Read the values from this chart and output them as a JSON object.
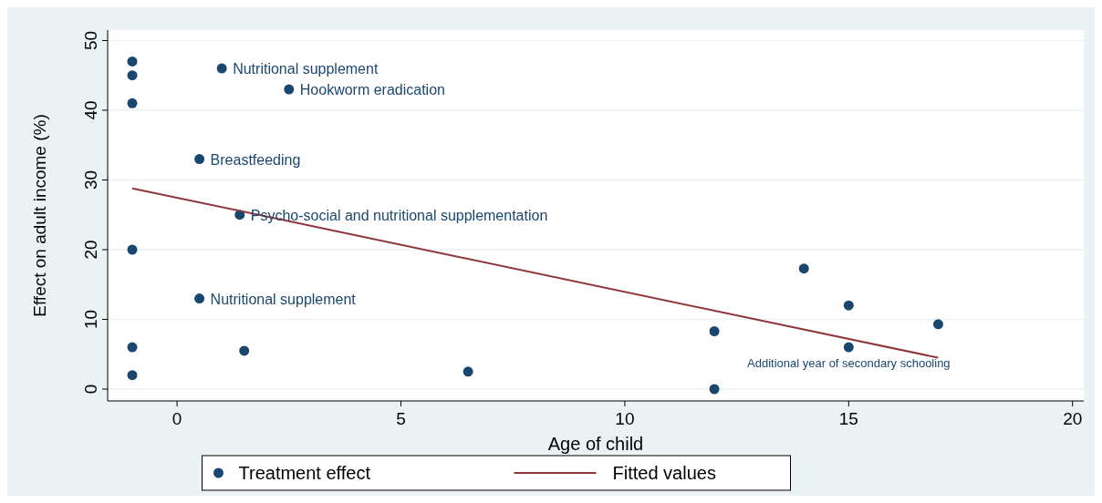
{
  "chart_data": {
    "type": "scatter",
    "xlabel": "Age of child",
    "ylabel": "Effect on adult income (%)",
    "xlim": [
      -1.55,
      20.25
    ],
    "ylim": [
      -1.7,
      51.5
    ],
    "xticks": [
      0,
      5,
      10,
      15,
      20
    ],
    "yticks": [
      0,
      10,
      20,
      30,
      40,
      50
    ],
    "grid": "y",
    "legend": "bottom",
    "marker": "circle",
    "series": [
      {
        "name": "Treatment effect",
        "color": "#1a476f",
        "x": [
          -1,
          -1,
          -1,
          1,
          2.5,
          0.5,
          1.4,
          -1,
          0.5,
          -1,
          -1,
          1.5,
          6.5,
          12,
          12,
          14,
          15,
          15,
          17
        ],
        "values": [
          47,
          45,
          41,
          46,
          43,
          33,
          25,
          20,
          13,
          6,
          2,
          5.5,
          2.5,
          8.3,
          0,
          17.3,
          12,
          6,
          9.3
        ]
      },
      {
        "name": "Fitted values",
        "type": "line",
        "color": "#90353b",
        "marker": "none",
        "x": [
          -1,
          17
        ],
        "values": [
          28.8,
          4.5
        ]
      }
    ],
    "annotations": [
      {
        "text": "Nutritional supplement",
        "x": 1,
        "y": 46
      },
      {
        "text": "Hookworm eradication",
        "x": 2.5,
        "y": 43
      },
      {
        "text": "Breastfeeding",
        "x": 0.5,
        "y": 33
      },
      {
        "text": "Psycho-social and nutritional supplementation",
        "x": 1.4,
        "y": 25
      },
      {
        "text": "Nutritional supplement",
        "x": 0.5,
        "y": 13
      },
      {
        "text": "Additional year of secondary schooling",
        "x": 15,
        "y": 6
      }
    ]
  }
}
